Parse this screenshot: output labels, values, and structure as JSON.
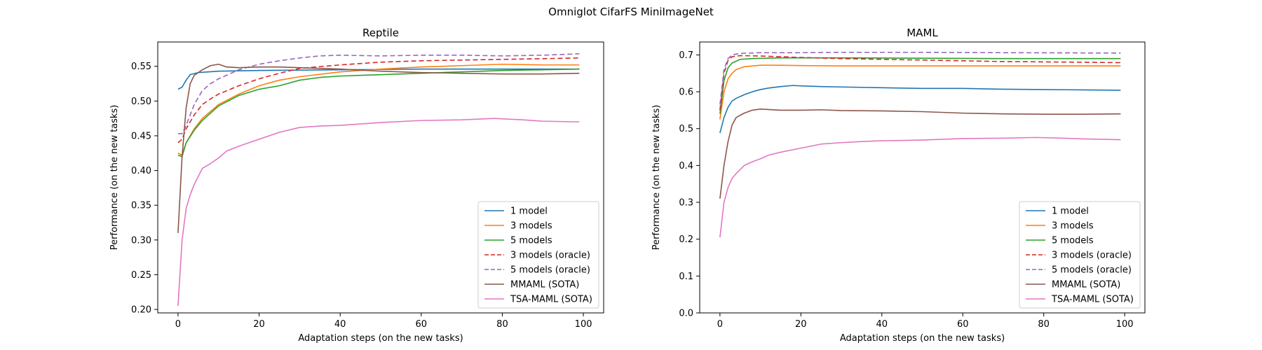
{
  "figure": {
    "suptitle": "Omniglot CifarFS MiniImageNet"
  },
  "series_styles": [
    {
      "name": "1 model",
      "color": "#1f77b4",
      "dash": ""
    },
    {
      "name": "3 models",
      "color": "#ff7f0e",
      "dash": ""
    },
    {
      "name": "5 models",
      "color": "#2ca02c",
      "dash": ""
    },
    {
      "name": "3 models (oracle)",
      "color": "#d62728",
      "dash": "7,4"
    },
    {
      "name": "5 models (oracle)",
      "color": "#9467bd",
      "dash": "7,4"
    },
    {
      "name": "MMAML (SOTA)",
      "color": "#8c564b",
      "dash": ""
    },
    {
      "name": "TSA-MAML (SOTA)",
      "color": "#e377c2",
      "dash": ""
    }
  ],
  "chart_data": [
    {
      "type": "line",
      "title": "Reptile",
      "xlabel": "Adaptation steps (on the new tasks)",
      "ylabel": "Performance (on the new tasks)",
      "xlim": [
        -5,
        105
      ],
      "ylim": [
        0.195,
        0.585
      ],
      "xticks": [
        0,
        20,
        40,
        60,
        80,
        100
      ],
      "yticks": [
        0.2,
        0.25,
        0.3,
        0.35,
        0.4,
        0.45,
        0.5,
        0.55
      ],
      "ytick_labels": [
        "0.20",
        "0.25",
        "0.30",
        "0.35",
        "0.40",
        "0.45",
        "0.50",
        "0.55"
      ],
      "legend": "lower-right",
      "series": [
        {
          "name": "1 model",
          "points": [
            [
              0,
              0.517
            ],
            [
              1,
              0.52
            ],
            [
              2,
              0.53
            ],
            [
              3,
              0.538
            ],
            [
              5,
              0.541
            ],
            [
              10,
              0.543
            ],
            [
              20,
              0.544
            ],
            [
              40,
              0.545
            ],
            [
              60,
              0.546
            ],
            [
              80,
              0.546
            ],
            [
              99,
              0.546
            ]
          ]
        },
        {
          "name": "3 models",
          "points": [
            [
              0,
              0.425
            ],
            [
              1,
              0.422
            ],
            [
              2,
              0.44
            ],
            [
              4,
              0.46
            ],
            [
              6,
              0.475
            ],
            [
              10,
              0.495
            ],
            [
              15,
              0.51
            ],
            [
              20,
              0.522
            ],
            [
              25,
              0.53
            ],
            [
              30,
              0.535
            ],
            [
              40,
              0.542
            ],
            [
              50,
              0.546
            ],
            [
              60,
              0.549
            ],
            [
              70,
              0.551
            ],
            [
              80,
              0.553
            ],
            [
              90,
              0.552
            ],
            [
              99,
              0.552
            ]
          ]
        },
        {
          "name": "5 models",
          "points": [
            [
              0,
              0.422
            ],
            [
              1,
              0.42
            ],
            [
              2,
              0.44
            ],
            [
              4,
              0.458
            ],
            [
              6,
              0.472
            ],
            [
              10,
              0.493
            ],
            [
              15,
              0.508
            ],
            [
              20,
              0.517
            ],
            [
              25,
              0.522
            ],
            [
              30,
              0.53
            ],
            [
              35,
              0.534
            ],
            [
              40,
              0.536
            ],
            [
              50,
              0.538
            ],
            [
              60,
              0.54
            ],
            [
              70,
              0.542
            ],
            [
              80,
              0.544
            ],
            [
              90,
              0.545
            ],
            [
              99,
              0.546
            ]
          ]
        },
        {
          "name": "3 models (oracle)",
          "points": [
            [
              0,
              0.44
            ],
            [
              1,
              0.445
            ],
            [
              2,
              0.46
            ],
            [
              4,
              0.48
            ],
            [
              6,
              0.495
            ],
            [
              8,
              0.503
            ],
            [
              10,
              0.51
            ],
            [
              15,
              0.522
            ],
            [
              20,
              0.532
            ],
            [
              25,
              0.54
            ],
            [
              30,
              0.547
            ],
            [
              40,
              0.552
            ],
            [
              50,
              0.556
            ],
            [
              60,
              0.558
            ],
            [
              70,
              0.559
            ],
            [
              80,
              0.56
            ],
            [
              90,
              0.561
            ],
            [
              99,
              0.562
            ]
          ]
        },
        {
          "name": "5 models (oracle)",
          "points": [
            [
              0,
              0.453
            ],
            [
              1,
              0.453
            ],
            [
              2,
              0.465
            ],
            [
              4,
              0.495
            ],
            [
              6,
              0.515
            ],
            [
              8,
              0.525
            ],
            [
              10,
              0.532
            ],
            [
              15,
              0.545
            ],
            [
              20,
              0.553
            ],
            [
              25,
              0.558
            ],
            [
              30,
              0.562
            ],
            [
              35,
              0.565
            ],
            [
              40,
              0.566
            ],
            [
              50,
              0.565
            ],
            [
              60,
              0.566
            ],
            [
              70,
              0.566
            ],
            [
              80,
              0.565
            ],
            [
              90,
              0.566
            ],
            [
              99,
              0.568
            ]
          ]
        },
        {
          "name": "MMAML (SOTA)",
          "points": [
            [
              0,
              0.31
            ],
            [
              1,
              0.42
            ],
            [
              2,
              0.49
            ],
            [
              3,
              0.525
            ],
            [
              4,
              0.537
            ],
            [
              6,
              0.545
            ],
            [
              8,
              0.551
            ],
            [
              10,
              0.553
            ],
            [
              12,
              0.549
            ],
            [
              15,
              0.548
            ],
            [
              20,
              0.549
            ],
            [
              25,
              0.549
            ],
            [
              30,
              0.548
            ],
            [
              40,
              0.546
            ],
            [
              50,
              0.543
            ],
            [
              60,
              0.541
            ],
            [
              70,
              0.54
            ],
            [
              80,
              0.539
            ],
            [
              90,
              0.539
            ],
            [
              99,
              0.54
            ]
          ]
        },
        {
          "name": "TSA-MAML (SOTA)",
          "points": [
            [
              0,
              0.205
            ],
            [
              1,
              0.3
            ],
            [
              2,
              0.345
            ],
            [
              3,
              0.365
            ],
            [
              4,
              0.38
            ],
            [
              6,
              0.403
            ],
            [
              8,
              0.41
            ],
            [
              10,
              0.418
            ],
            [
              12,
              0.428
            ],
            [
              15,
              0.435
            ],
            [
              20,
              0.445
            ],
            [
              25,
              0.455
            ],
            [
              30,
              0.462
            ],
            [
              35,
              0.464
            ],
            [
              40,
              0.465
            ],
            [
              45,
              0.467
            ],
            [
              50,
              0.469
            ],
            [
              60,
              0.472
            ],
            [
              70,
              0.473
            ],
            [
              78,
              0.475
            ],
            [
              85,
              0.473
            ],
            [
              90,
              0.471
            ],
            [
              99,
              0.47
            ]
          ]
        }
      ]
    },
    {
      "type": "line",
      "title": "MAML",
      "xlabel": "Adaptation steps (on the new tasks)",
      "ylabel": "Performance (on the new tasks)",
      "xlim": [
        -5,
        105
      ],
      "ylim": [
        0,
        0.735
      ],
      "xticks": [
        0,
        20,
        40,
        60,
        80,
        100
      ],
      "yticks": [
        0.0,
        0.1,
        0.2,
        0.3,
        0.4,
        0.5,
        0.6,
        0.7
      ],
      "ytick_labels": [
        "0.0",
        "0.1",
        "0.2",
        "0.3",
        "0.4",
        "0.5",
        "0.6",
        "0.7"
      ],
      "legend": "lower-right",
      "series": [
        {
          "name": "1 model",
          "points": [
            [
              0,
              0.488
            ],
            [
              1,
              0.53
            ],
            [
              2,
              0.558
            ],
            [
              3,
              0.575
            ],
            [
              4,
              0.582
            ],
            [
              6,
              0.592
            ],
            [
              8,
              0.6
            ],
            [
              10,
              0.606
            ],
            [
              12,
              0.61
            ],
            [
              15,
              0.614
            ],
            [
              18,
              0.617
            ],
            [
              20,
              0.616
            ],
            [
              25,
              0.614
            ],
            [
              30,
              0.613
            ],
            [
              40,
              0.611
            ],
            [
              50,
              0.609
            ],
            [
              60,
              0.609
            ],
            [
              70,
              0.607
            ],
            [
              80,
              0.606
            ],
            [
              90,
              0.605
            ],
            [
              99,
              0.604
            ]
          ]
        },
        {
          "name": "3 models",
          "points": [
            [
              0,
              0.525
            ],
            [
              1,
              0.6
            ],
            [
              2,
              0.635
            ],
            [
              3,
              0.65
            ],
            [
              4,
              0.66
            ],
            [
              6,
              0.668
            ],
            [
              10,
              0.672
            ],
            [
              15,
              0.672
            ],
            [
              20,
              0.671
            ],
            [
              30,
              0.67
            ],
            [
              50,
              0.67
            ],
            [
              70,
              0.67
            ],
            [
              99,
              0.67
            ]
          ]
        },
        {
          "name": "5 models",
          "points": [
            [
              0,
              0.54
            ],
            [
              1,
              0.63
            ],
            [
              2,
              0.665
            ],
            [
              3,
              0.678
            ],
            [
              5,
              0.688
            ],
            [
              8,
              0.69
            ],
            [
              15,
              0.692
            ],
            [
              30,
              0.692
            ],
            [
              50,
              0.691
            ],
            [
              70,
              0.69
            ],
            [
              99,
              0.69
            ]
          ]
        },
        {
          "name": "3 models (oracle)",
          "points": [
            [
              0,
              0.55
            ],
            [
              1,
              0.65
            ],
            [
              2,
              0.685
            ],
            [
              3,
              0.695
            ],
            [
              5,
              0.698
            ],
            [
              10,
              0.697
            ],
            [
              20,
              0.693
            ],
            [
              30,
              0.69
            ],
            [
              40,
              0.688
            ],
            [
              50,
              0.686
            ],
            [
              60,
              0.684
            ],
            [
              70,
              0.682
            ],
            [
              80,
              0.681
            ],
            [
              90,
              0.68
            ],
            [
              99,
              0.679
            ]
          ]
        },
        {
          "name": "5 models (oracle)",
          "points": [
            [
              0,
              0.565
            ],
            [
              1,
              0.66
            ],
            [
              2,
              0.69
            ],
            [
              3,
              0.7
            ],
            [
              5,
              0.704
            ],
            [
              10,
              0.706
            ],
            [
              20,
              0.706
            ],
            [
              30,
              0.707
            ],
            [
              50,
              0.707
            ],
            [
              70,
              0.706
            ],
            [
              99,
              0.705
            ]
          ]
        },
        {
          "name": "MMAML (SOTA)",
          "points": [
            [
              0,
              0.31
            ],
            [
              1,
              0.4
            ],
            [
              2,
              0.465
            ],
            [
              3,
              0.51
            ],
            [
              4,
              0.53
            ],
            [
              6,
              0.542
            ],
            [
              8,
              0.55
            ],
            [
              10,
              0.553
            ],
            [
              15,
              0.55
            ],
            [
              20,
              0.55
            ],
            [
              25,
              0.551
            ],
            [
              30,
              0.549
            ],
            [
              40,
              0.548
            ],
            [
              50,
              0.546
            ],
            [
              60,
              0.542
            ],
            [
              70,
              0.54
            ],
            [
              80,
              0.539
            ],
            [
              90,
              0.539
            ],
            [
              99,
              0.54
            ]
          ]
        },
        {
          "name": "TSA-MAML (SOTA)",
          "points": [
            [
              0,
              0.205
            ],
            [
              1,
              0.3
            ],
            [
              2,
              0.34
            ],
            [
              3,
              0.365
            ],
            [
              4,
              0.378
            ],
            [
              6,
              0.4
            ],
            [
              8,
              0.41
            ],
            [
              10,
              0.418
            ],
            [
              12,
              0.428
            ],
            [
              15,
              0.436
            ],
            [
              20,
              0.447
            ],
            [
              25,
              0.458
            ],
            [
              30,
              0.462
            ],
            [
              35,
              0.465
            ],
            [
              40,
              0.467
            ],
            [
              50,
              0.469
            ],
            [
              60,
              0.473
            ],
            [
              70,
              0.474
            ],
            [
              78,
              0.476
            ],
            [
              85,
              0.474
            ],
            [
              90,
              0.472
            ],
            [
              99,
              0.47
            ]
          ]
        }
      ]
    }
  ]
}
